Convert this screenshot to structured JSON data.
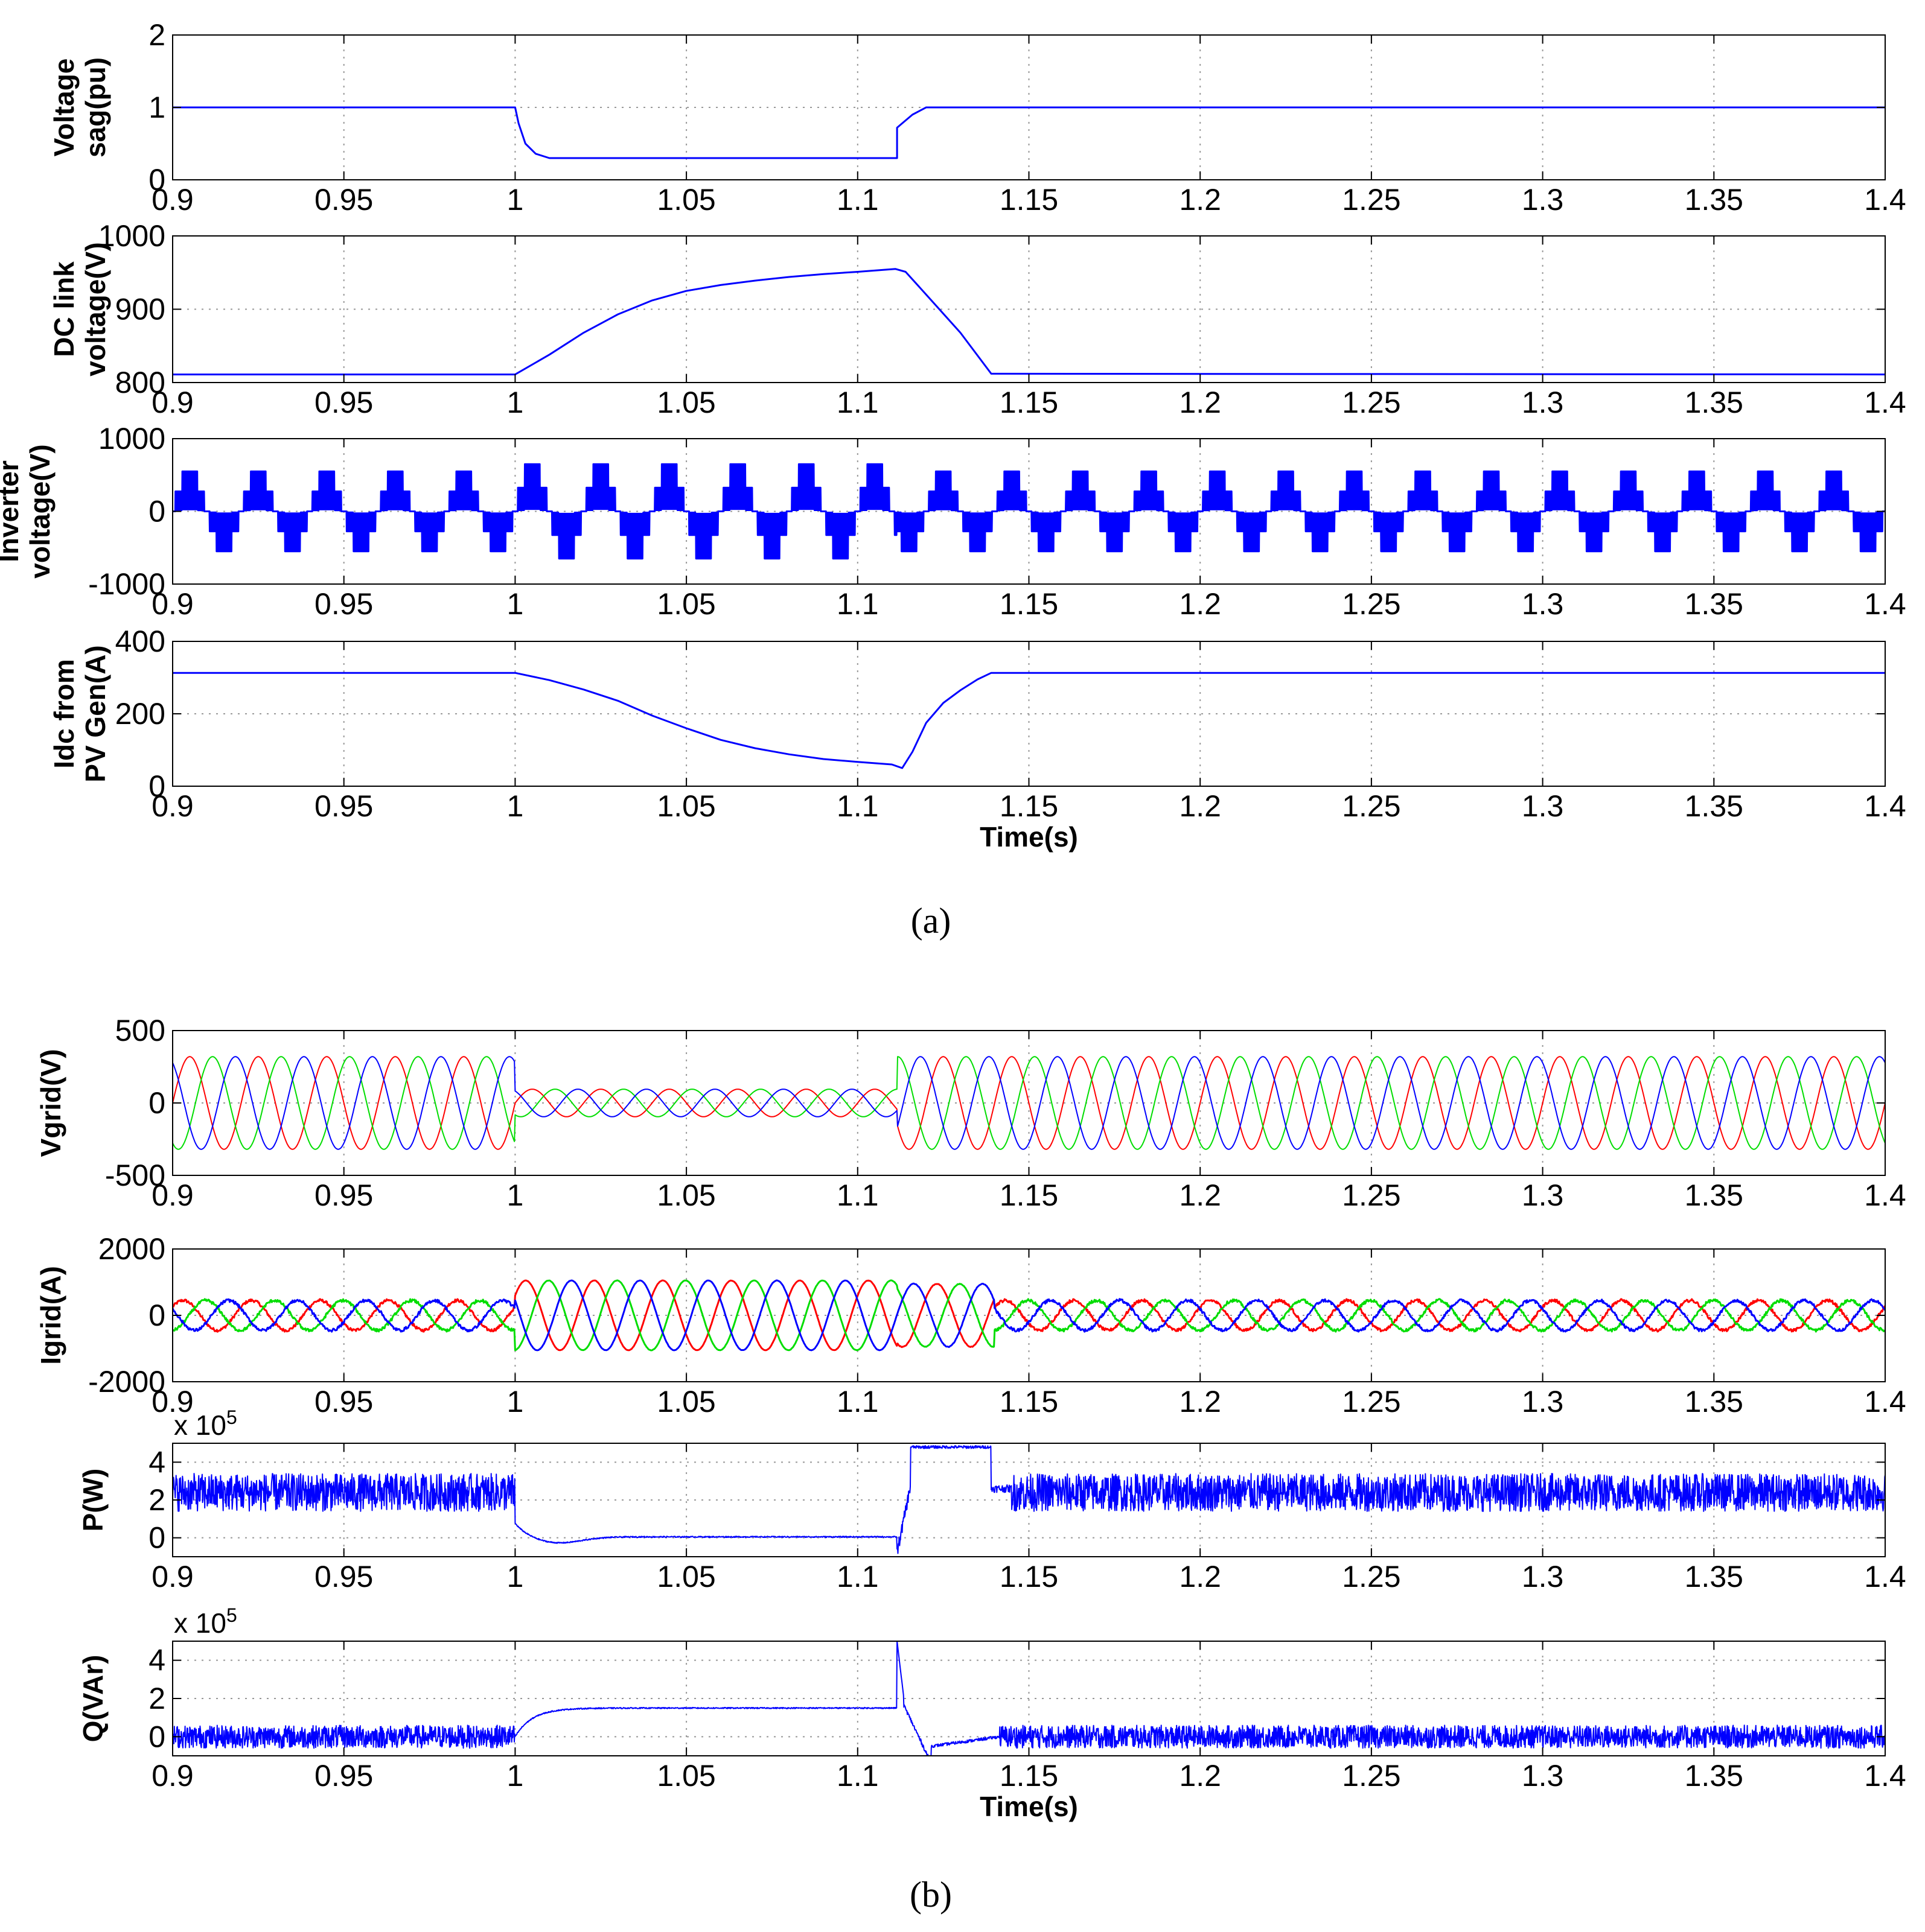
{
  "figure": {
    "caption_a": "(a)",
    "caption_b": "(b)"
  },
  "chart_data": [
    {
      "type": "line",
      "panel": "a1",
      "ylabel": [
        "Voltage",
        "sag(pu)"
      ],
      "xlabel": "",
      "xlim": [
        0.9,
        1.4
      ],
      "ylim": [
        0,
        2
      ],
      "xticks": [
        "0.9",
        "0.95",
        "1",
        "1.05",
        "1.1",
        "1.15",
        "1.2",
        "1.25",
        "1.3",
        "1.35",
        "1.4"
      ],
      "yticks": [
        {
          "v": 0,
          "t": "0"
        },
        {
          "v": 1,
          "t": "1"
        },
        {
          "v": 2,
          "t": "2"
        }
      ],
      "grid": true,
      "series": [
        {
          "color": "#0000ff",
          "x": [
            0.9,
            1.0,
            1.001,
            1.003,
            1.006,
            1.01,
            1.1115,
            1.1115,
            1.113,
            1.116,
            1.12,
            1.4
          ],
          "y": [
            1.0,
            1.0,
            0.78,
            0.5,
            0.36,
            0.3,
            0.3,
            0.72,
            0.78,
            0.9,
            1.0,
            1.0
          ]
        }
      ]
    },
    {
      "type": "line",
      "panel": "a2",
      "ylabel": [
        "DC link",
        "voltage(V)"
      ],
      "xlabel": "",
      "xlim": [
        0.9,
        1.4
      ],
      "ylim": [
        800,
        1000
      ],
      "xticks": [
        "0.9",
        "0.95",
        "1",
        "1.05",
        "1.1",
        "1.15",
        "1.2",
        "1.25",
        "1.3",
        "1.35",
        "1.4"
      ],
      "yticks": [
        {
          "v": 800,
          "t": "800"
        },
        {
          "v": 900,
          "t": "900"
        },
        {
          "v": 1000,
          "t": "1000"
        }
      ],
      "grid": true,
      "series": [
        {
          "color": "#0000ff",
          "x": [
            0.9,
            1.0,
            1.01,
            1.02,
            1.03,
            1.04,
            1.05,
            1.06,
            1.07,
            1.08,
            1.09,
            1.1,
            1.111,
            1.114,
            1.12,
            1.13,
            1.139,
            1.4
          ],
          "y": [
            811,
            811,
            838,
            868,
            893,
            912,
            925,
            933,
            939,
            944,
            948,
            951,
            955,
            951,
            920,
            868,
            812,
            811
          ]
        }
      ]
    },
    {
      "type": "line",
      "panel": "a3",
      "ylabel": [
        "Inverter",
        "voltage(V)"
      ],
      "xlabel": "",
      "xlim": [
        0.9,
        1.4
      ],
      "ylim": [
        -1000,
        1000
      ],
      "xticks": [
        "0.9",
        "0.95",
        "1",
        "1.05",
        "1.1",
        "1.15",
        "1.2",
        "1.25",
        "1.3",
        "1.35",
        "1.4"
      ],
      "yticks": [
        {
          "v": -1000,
          "t": "-1000"
        },
        {
          "v": 0,
          "t": "0"
        },
        {
          "v": 1000,
          "t": "1000"
        }
      ],
      "grid": true,
      "waveform": {
        "kind": "pwm",
        "frequency_hz": 50,
        "amplitude_normal": 550,
        "amplitude_sag": 650,
        "sag_start": 1.0,
        "sag_end": 1.1115
      },
      "series": [
        {
          "color": "#0000ff"
        }
      ]
    },
    {
      "type": "line",
      "panel": "a4",
      "ylabel": [
        "Idc from",
        "PV Gen(A)"
      ],
      "xlabel": "Time(s)",
      "xlim": [
        0.9,
        1.4
      ],
      "ylim": [
        0,
        400
      ],
      "xticks": [
        "0.9",
        "0.95",
        "1",
        "1.05",
        "1.1",
        "1.15",
        "1.2",
        "1.25",
        "1.3",
        "1.35",
        "1.4"
      ],
      "yticks": [
        {
          "v": 0,
          "t": "0"
        },
        {
          "v": 200,
          "t": "200"
        },
        {
          "v": 400,
          "t": "400"
        }
      ],
      "grid": true,
      "series": [
        {
          "color": "#0000ff",
          "x": [
            0.9,
            1.0,
            1.01,
            1.02,
            1.03,
            1.04,
            1.05,
            1.06,
            1.07,
            1.08,
            1.09,
            1.1,
            1.11,
            1.113,
            1.116,
            1.12,
            1.125,
            1.13,
            1.135,
            1.139,
            1.4
          ],
          "y": [
            313,
            313,
            293,
            267,
            236,
            195,
            160,
            128,
            105,
            88,
            75,
            67,
            60,
            50,
            95,
            175,
            230,
            265,
            295,
            313,
            313
          ]
        }
      ]
    },
    {
      "type": "line",
      "panel": "b1",
      "ylabel": [
        "Vgrid(V)"
      ],
      "xlabel": "",
      "xlim": [
        0.9,
        1.4
      ],
      "ylim": [
        -500,
        500
      ],
      "xticks": [
        "0.9",
        "0.95",
        "1",
        "1.05",
        "1.1",
        "1.15",
        "1.2",
        "1.25",
        "1.3",
        "1.35",
        "1.4"
      ],
      "yticks": [
        {
          "v": -500,
          "t": "-500"
        },
        {
          "v": 0,
          "t": "0"
        },
        {
          "v": 500,
          "t": "500"
        }
      ],
      "grid": true,
      "waveform": {
        "kind": "three-phase",
        "frequency_hz": 50,
        "amplitude_normal": 320,
        "amplitude_sag": 95,
        "sag_start": 1.0,
        "sag_end": 1.1115
      },
      "series": [
        {
          "color": "#ff0000"
        },
        {
          "color": "#00dd00"
        },
        {
          "color": "#0000ff"
        }
      ]
    },
    {
      "type": "line",
      "panel": "b2",
      "ylabel": [
        "Igrid(A)"
      ],
      "xlabel": "",
      "xlim": [
        0.9,
        1.4
      ],
      "ylim": [
        -2000,
        2000
      ],
      "xticks": [
        "0.9",
        "0.95",
        "1",
        "1.05",
        "1.1",
        "1.15",
        "1.2",
        "1.25",
        "1.3",
        "1.35",
        "1.4"
      ],
      "yticks": [
        {
          "v": -2000,
          "t": "-2000"
        },
        {
          "v": 0,
          "t": "0"
        },
        {
          "v": 2000,
          "t": "2000"
        }
      ],
      "grid": true,
      "waveform": {
        "kind": "three-phase-current",
        "frequency_hz": 50,
        "amplitude_normal": 450,
        "amplitude_sag": 1050,
        "amplitude_recovery": 950,
        "sag_start": 1.0,
        "sag_end": 1.1115,
        "recovery_end": 1.14
      },
      "series": [
        {
          "color": "#ff0000"
        },
        {
          "color": "#00dd00"
        },
        {
          "color": "#0000ff"
        }
      ]
    },
    {
      "type": "line",
      "panel": "b3",
      "ylabel": [
        "P(W)"
      ],
      "xlabel": "",
      "multiplier": "x 10",
      "multiplier_exp": "5",
      "xlim": [
        0.9,
        1.4
      ],
      "ylim": [
        -1,
        5
      ],
      "xticks": [
        "0.9",
        "0.95",
        "1",
        "1.05",
        "1.1",
        "1.15",
        "1.2",
        "1.25",
        "1.3",
        "1.35",
        "1.4"
      ],
      "yticks": [
        {
          "v": 0,
          "t": "0"
        },
        {
          "v": 2,
          "t": "2"
        },
        {
          "v": 4,
          "t": "4"
        }
      ],
      "grid": true,
      "waveform": {
        "kind": "noisy-steps",
        "base": 2.4,
        "noise": 1.0,
        "sag_level": 0.05,
        "sag_start": 1.0,
        "sag_end": 1.1115,
        "high_level": 4.8,
        "high_end": 1.139
      },
      "series": [
        {
          "color": "#0000ff"
        }
      ]
    },
    {
      "type": "line",
      "panel": "b4",
      "ylabel": [
        "Q(VAr)"
      ],
      "xlabel": "Time(s)",
      "multiplier": "x 10",
      "multiplier_exp": "5",
      "xlim": [
        0.9,
        1.4
      ],
      "ylim": [
        -1,
        5
      ],
      "xticks": [
        "0.9",
        "0.95",
        "1",
        "1.05",
        "1.1",
        "1.15",
        "1.2",
        "1.25",
        "1.3",
        "1.35",
        "1.4"
      ],
      "yticks": [
        {
          "v": 0,
          "t": "0"
        },
        {
          "v": 2,
          "t": "2"
        },
        {
          "v": 4,
          "t": "4"
        }
      ],
      "grid": true,
      "waveform": {
        "kind": "noisy-steps-q",
        "base": 0.0,
        "noise": 0.6,
        "sag_level": 1.5,
        "sag_start": 1.0,
        "sag_end": 1.1115
      },
      "series": [
        {
          "color": "#0000ff"
        }
      ]
    }
  ]
}
